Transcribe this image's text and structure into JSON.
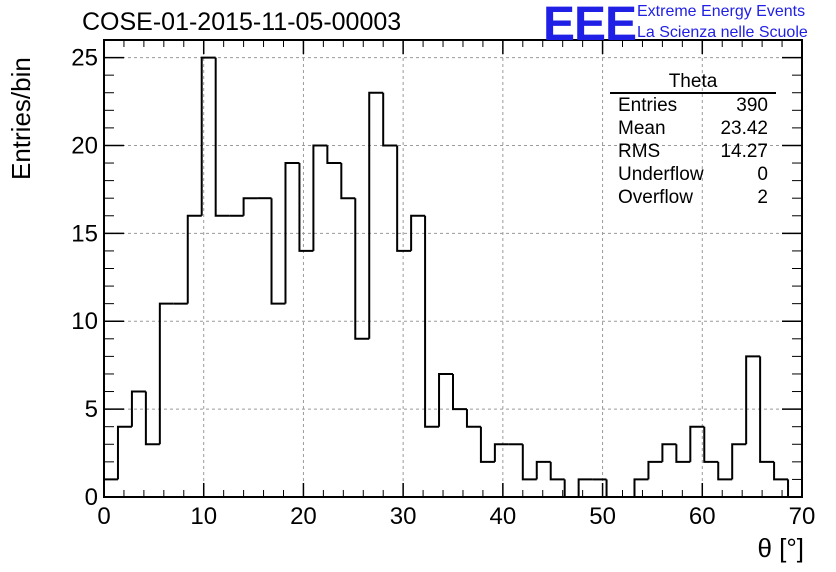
{
  "title": "COSE-01-2015-11-05-00003",
  "logo": {
    "mark": "EEE",
    "line1": "Extreme Energy Events",
    "line2": "La Scienza nelle Scuole",
    "color": "#1f1fe6"
  },
  "stats_box": {
    "name": "Theta",
    "rows": [
      {
        "label": "Entries",
        "value": "390"
      },
      {
        "label": "Mean",
        "value": "23.42"
      },
      {
        "label": "RMS",
        "value": "14.27"
      },
      {
        "label": "Underflow",
        "value": "0"
      },
      {
        "label": "Overflow",
        "value": "2"
      }
    ]
  },
  "chart_data": {
    "type": "histogram",
    "xlabel": "θ [°]",
    "ylabel": "Entries/bin",
    "xlim": [
      0,
      70
    ],
    "ylim": [
      0,
      26
    ],
    "xticks": [
      0,
      10,
      20,
      30,
      40,
      50,
      60,
      70
    ],
    "yticks": [
      0,
      5,
      10,
      15,
      20,
      25
    ],
    "grid": true,
    "bin_width": 1.4,
    "values": [
      1,
      4,
      6,
      3,
      11,
      11,
      16,
      25,
      16,
      16,
      17,
      17,
      11,
      19,
      14,
      20,
      19,
      17,
      9,
      23,
      20,
      14,
      16,
      4,
      7,
      5,
      4,
      2,
      3,
      3,
      1,
      2,
      1,
      0,
      1,
      1,
      0,
      0,
      1,
      2,
      3,
      2,
      4,
      2,
      1,
      3,
      8,
      2,
      1,
      0
    ],
    "line_color": "#000000"
  }
}
